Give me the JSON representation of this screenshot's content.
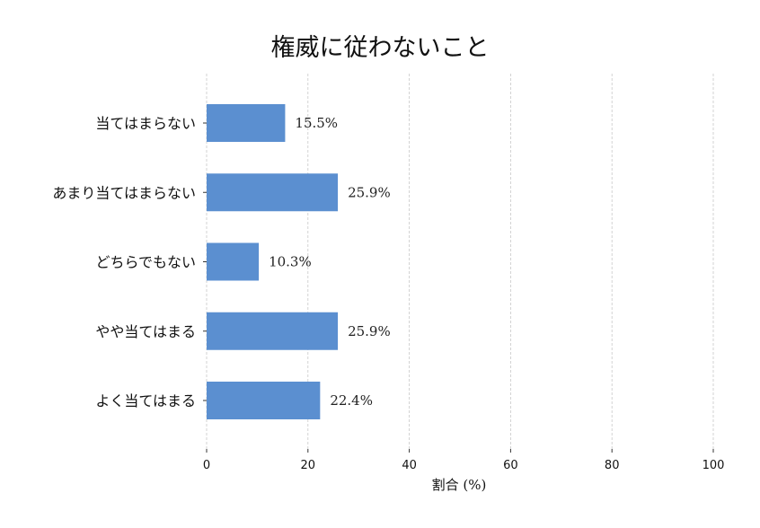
{
  "chart_data": {
    "type": "bar",
    "orientation": "horizontal",
    "title": "権威に従わないこと",
    "xlabel": "割合 (%)",
    "ylabel": "",
    "xlim": [
      0,
      100
    ],
    "xticks": [
      "0",
      "20",
      "40",
      "60",
      "80",
      "100"
    ],
    "grid": true,
    "categories": [
      "当てはまらない",
      "あまり当てはまらない",
      "どちらでもない",
      "やや当てはまる",
      "よく当てはまる"
    ],
    "values": [
      15.5,
      25.9,
      10.3,
      25.9,
      22.4
    ],
    "value_labels": [
      "15.5%",
      "25.9%",
      "10.3%",
      "25.9%",
      "22.4%"
    ],
    "colors": {
      "bar": "#5b8fd0"
    }
  }
}
